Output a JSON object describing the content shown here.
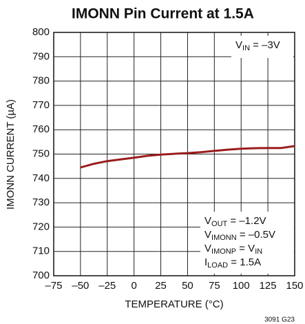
{
  "chart_data": {
    "type": "line",
    "title": "IMONN Pin Current at 1.5A",
    "x_label": "TEMPERATURE (°C)",
    "y_label": "IMONN CURRENT (µA)",
    "x": [
      -50,
      -37.5,
      -25,
      -12.5,
      0,
      12.5,
      25,
      37.5,
      50,
      62.5,
      75,
      87.5,
      100,
      112.5,
      125,
      137.5,
      150
    ],
    "values": [
      744.5,
      746,
      747.1,
      747.8,
      748.5,
      749.3,
      749.8,
      750.1,
      750.4,
      750.8,
      751.3,
      751.8,
      752.2,
      752.4,
      752.5,
      752.5,
      753.3
    ],
    "color": "#9b1c1c",
    "xlim": [
      -75,
      150
    ],
    "xticks": [
      {
        "value": -75,
        "label": "–75"
      },
      {
        "value": -50,
        "label": "–50"
      },
      {
        "value": -25,
        "label": "–25"
      },
      0,
      25,
      50,
      75,
      100,
      125,
      150
    ],
    "ylim": [
      700,
      800
    ],
    "yticks": [
      700,
      710,
      720,
      730,
      740,
      750,
      760,
      770,
      780,
      790,
      800
    ],
    "grid": true,
    "annotation_top": [
      [
        "V",
        "IN",
        " = –3V"
      ]
    ],
    "annotation_bottom": [
      [
        "V",
        "OUT",
        " = –1.2V"
      ],
      [
        "V",
        "IMONN",
        " = –0.5V"
      ],
      [
        "V",
        "IMONP",
        " = V",
        "IN"
      ],
      [
        "I",
        "LOAD",
        " = 1.5A"
      ]
    ],
    "figure_id": "3091 G23"
  }
}
